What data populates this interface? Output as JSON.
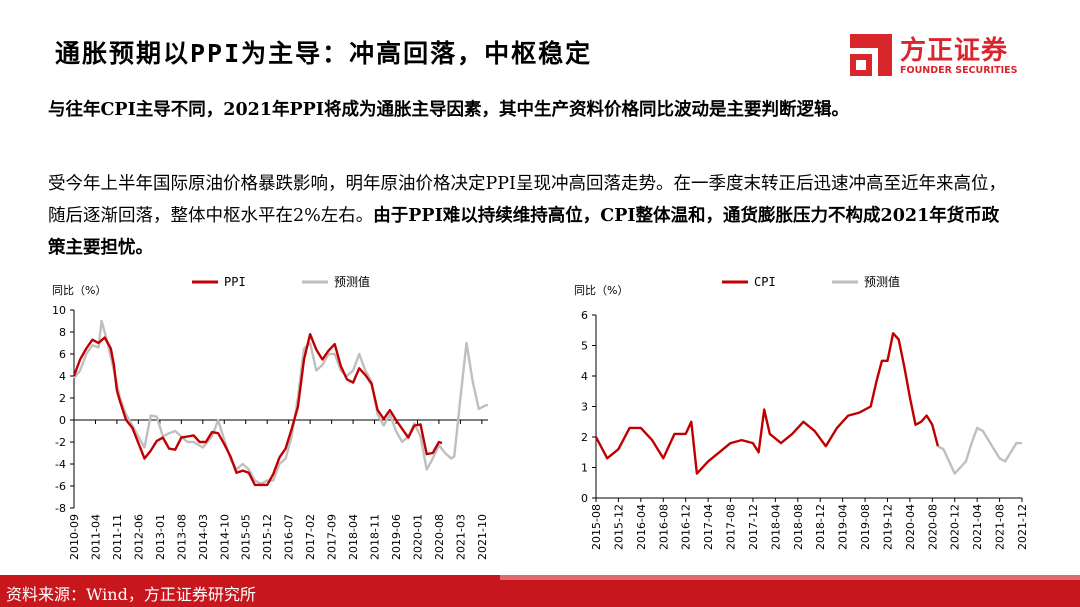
{
  "header": {
    "title": "通胀预期以PPI为主导：冲高回落，中枢稳定",
    "logo_cn": "方正证券",
    "logo_en": "FOUNDER SECURITIES",
    "brand_color": "#d8262c"
  },
  "body": {
    "p1": "与往年CPI主导不同，2021年PPI将成为通胀主导因素，其中生产资料价格同比波动是主要判断逻辑。",
    "p2_normal": "受今年上半年国际原油价格暴跌影响，明年原油价格决定PPI呈现冲高回落走势。在一季度末转正后迅速冲高至近年来高位，随后逐渐回落，整体中枢水平在2%左右。",
    "p2_bold": "由于PPI难以持续维持高位，CPI整体温和，通货膨胀压力不构成2021年货币政策主要担忧。"
  },
  "footer": {
    "source": "资料来源：Wind，方正证券研究所"
  },
  "chart_data": [
    {
      "type": "line",
      "ylabel": "同比（%）",
      "ylim": [
        -8,
        10
      ],
      "yticks": [
        -8,
        -6,
        -4,
        -2,
        0,
        2,
        4,
        6,
        8,
        10
      ],
      "xlim": [
        "2010-09",
        "2021-12"
      ],
      "xticks": [
        "2010-09",
        "2011-04",
        "2011-11",
        "2012-06",
        "2013-01",
        "2013-08",
        "2014-03",
        "2014-10",
        "2015-05",
        "2015-12",
        "2016-07",
        "2017-02",
        "2017-09",
        "2018-04",
        "2018-11",
        "2019-06",
        "2020-01",
        "2020-08",
        "2021-03",
        "2021-10"
      ],
      "grid": false,
      "legend_position": "top",
      "series": [
        {
          "name": "PPI",
          "color": "#c00000",
          "points": [
            [
              "2010-09",
              4.0
            ],
            [
              "2010-11",
              5.5
            ],
            [
              "2011-01",
              6.5
            ],
            [
              "2011-03",
              7.3
            ],
            [
              "2011-05",
              7.0
            ],
            [
              "2011-07",
              7.5
            ],
            [
              "2011-09",
              6.5
            ],
            [
              "2011-10",
              5.0
            ],
            [
              "2011-11",
              2.7
            ],
            [
              "2011-12",
              1.7
            ],
            [
              "2012-02",
              0.0
            ],
            [
              "2012-04",
              -0.7
            ],
            [
              "2012-06",
              -2.1
            ],
            [
              "2012-08",
              -3.5
            ],
            [
              "2012-10",
              -2.8
            ],
            [
              "2012-12",
              -1.9
            ],
            [
              "2013-02",
              -1.6
            ],
            [
              "2013-04",
              -2.6
            ],
            [
              "2013-06",
              -2.7
            ],
            [
              "2013-08",
              -1.6
            ],
            [
              "2013-10",
              -1.5
            ],
            [
              "2013-12",
              -1.4
            ],
            [
              "2014-02",
              -2.0
            ],
            [
              "2014-04",
              -2.0
            ],
            [
              "2014-06",
              -1.1
            ],
            [
              "2014-08",
              -1.2
            ],
            [
              "2014-10",
              -2.2
            ],
            [
              "2014-12",
              -3.3
            ],
            [
              "2015-02",
              -4.8
            ],
            [
              "2015-04",
              -4.6
            ],
            [
              "2015-06",
              -4.8
            ],
            [
              "2015-08",
              -5.9
            ],
            [
              "2015-10",
              -5.9
            ],
            [
              "2015-12",
              -5.9
            ],
            [
              "2016-02",
              -4.9
            ],
            [
              "2016-04",
              -3.4
            ],
            [
              "2016-06",
              -2.6
            ],
            [
              "2016-08",
              -0.8
            ],
            [
              "2016-10",
              1.2
            ],
            [
              "2016-12",
              5.5
            ],
            [
              "2017-02",
              7.8
            ],
            [
              "2017-04",
              6.4
            ],
            [
              "2017-06",
              5.5
            ],
            [
              "2017-08",
              6.3
            ],
            [
              "2017-10",
              6.9
            ],
            [
              "2017-12",
              4.9
            ],
            [
              "2018-02",
              3.7
            ],
            [
              "2018-04",
              3.4
            ],
            [
              "2018-06",
              4.7
            ],
            [
              "2018-08",
              4.1
            ],
            [
              "2018-10",
              3.3
            ],
            [
              "2018-12",
              0.9
            ],
            [
              "2019-02",
              0.1
            ],
            [
              "2019-04",
              0.9
            ],
            [
              "2019-06",
              0.0
            ],
            [
              "2019-08",
              -0.8
            ],
            [
              "2019-10",
              -1.6
            ],
            [
              "2019-12",
              -0.5
            ],
            [
              "2020-02",
              -0.4
            ],
            [
              "2020-04",
              -3.1
            ],
            [
              "2020-06",
              -3.0
            ],
            [
              "2020-08",
              -2.0
            ],
            [
              "2020-09",
              -2.1
            ]
          ]
        },
        {
          "name": "预测值",
          "color": "#bfbfbf",
          "points": [
            [
              "2010-09",
              3.8
            ],
            [
              "2010-11",
              4.5
            ],
            [
              "2011-01",
              6.0
            ],
            [
              "2011-03",
              6.8
            ],
            [
              "2011-05",
              6.6
            ],
            [
              "2011-06",
              9.0
            ],
            [
              "2011-08",
              7.0
            ],
            [
              "2011-10",
              4.5
            ],
            [
              "2011-12",
              2.0
            ],
            [
              "2012-02",
              0.5
            ],
            [
              "2012-04",
              -0.5
            ],
            [
              "2012-06",
              -1.5
            ],
            [
              "2012-08",
              -2.5
            ],
            [
              "2012-10",
              0.4
            ],
            [
              "2012-12",
              0.3
            ],
            [
              "2013-02",
              -1.5
            ],
            [
              "2013-04",
              -1.2
            ],
            [
              "2013-06",
              -1.0
            ],
            [
              "2013-08",
              -1.5
            ],
            [
              "2013-10",
              -2.0
            ],
            [
              "2013-12",
              -2.0
            ],
            [
              "2014-03",
              -2.5
            ],
            [
              "2014-06",
              -1.5
            ],
            [
              "2014-08",
              0.0
            ],
            [
              "2014-10",
              -1.8
            ],
            [
              "2014-12",
              -3.5
            ],
            [
              "2015-02",
              -4.5
            ],
            [
              "2015-04",
              -4.0
            ],
            [
              "2015-06",
              -4.5
            ],
            [
              "2015-08",
              -5.5
            ],
            [
              "2015-10",
              -5.8
            ],
            [
              "2015-12",
              -5.5
            ],
            [
              "2016-02",
              -5.5
            ],
            [
              "2016-04",
              -4.0
            ],
            [
              "2016-06",
              -3.5
            ],
            [
              "2016-08",
              -1.5
            ],
            [
              "2016-10",
              2.0
            ],
            [
              "2016-12",
              6.5
            ],
            [
              "2017-02",
              7.0
            ],
            [
              "2017-04",
              4.5
            ],
            [
              "2017-06",
              5.0
            ],
            [
              "2017-08",
              6.0
            ],
            [
              "2017-10",
              6.0
            ],
            [
              "2017-12",
              4.5
            ],
            [
              "2018-02",
              4.0
            ],
            [
              "2018-04",
              4.5
            ],
            [
              "2018-06",
              6.0
            ],
            [
              "2018-08",
              4.5
            ],
            [
              "2018-10",
              3.5
            ],
            [
              "2018-12",
              0.5
            ],
            [
              "2019-02",
              -0.5
            ],
            [
              "2019-04",
              0.5
            ],
            [
              "2019-06",
              -1.0
            ],
            [
              "2019-08",
              -2.0
            ],
            [
              "2019-10",
              -1.5
            ],
            [
              "2019-12",
              -0.3
            ],
            [
              "2020-02",
              -1.5
            ],
            [
              "2020-04",
              -4.5
            ],
            [
              "2020-06",
              -3.5
            ],
            [
              "2020-08",
              -2.3
            ],
            [
              "2020-10",
              -3.0
            ],
            [
              "2020-12",
              -3.5
            ],
            [
              "2021-01",
              -3.3
            ],
            [
              "2021-03",
              2.0
            ],
            [
              "2021-05",
              7.0
            ],
            [
              "2021-07",
              3.5
            ],
            [
              "2021-09",
              1.0
            ],
            [
              "2021-11",
              1.3
            ],
            [
              "2021-12",
              1.4
            ]
          ]
        }
      ]
    },
    {
      "type": "line",
      "ylabel": "同比（%）",
      "ylim": [
        0,
        6
      ],
      "yticks": [
        0,
        1,
        2,
        3,
        4,
        5,
        6
      ],
      "xlim": [
        "2015-08",
        "2021-12"
      ],
      "xticks": [
        "2015-08",
        "2015-12",
        "2016-04",
        "2016-08",
        "2016-12",
        "2017-04",
        "2017-08",
        "2017-12",
        "2018-04",
        "2018-08",
        "2018-12",
        "2019-04",
        "2019-08",
        "2019-12",
        "2020-04",
        "2020-08",
        "2020-12",
        "2021-04",
        "2021-08",
        "2021-12"
      ],
      "grid": false,
      "legend_position": "top",
      "series": [
        {
          "name": "CPI",
          "color": "#c00000",
          "points": [
            [
              "2015-08",
              2.0
            ],
            [
              "2015-10",
              1.3
            ],
            [
              "2015-12",
              1.6
            ],
            [
              "2016-02",
              2.3
            ],
            [
              "2016-04",
              2.3
            ],
            [
              "2016-06",
              1.9
            ],
            [
              "2016-08",
              1.3
            ],
            [
              "2016-10",
              2.1
            ],
            [
              "2016-12",
              2.1
            ],
            [
              "2017-01",
              2.5
            ],
            [
              "2017-02",
              0.8
            ],
            [
              "2017-04",
              1.2
            ],
            [
              "2017-06",
              1.5
            ],
            [
              "2017-08",
              1.8
            ],
            [
              "2017-10",
              1.9
            ],
            [
              "2017-12",
              1.8
            ],
            [
              "2018-01",
              1.5
            ],
            [
              "2018-02",
              2.9
            ],
            [
              "2018-03",
              2.1
            ],
            [
              "2018-05",
              1.8
            ],
            [
              "2018-07",
              2.1
            ],
            [
              "2018-09",
              2.5
            ],
            [
              "2018-11",
              2.2
            ],
            [
              "2019-01",
              1.7
            ],
            [
              "2019-03",
              2.3
            ],
            [
              "2019-05",
              2.7
            ],
            [
              "2019-07",
              2.8
            ],
            [
              "2019-09",
              3.0
            ],
            [
              "2019-10",
              3.8
            ],
            [
              "2019-11",
              4.5
            ],
            [
              "2019-12",
              4.5
            ],
            [
              "2020-01",
              5.4
            ],
            [
              "2020-02",
              5.2
            ],
            [
              "2020-03",
              4.3
            ],
            [
              "2020-04",
              3.3
            ],
            [
              "2020-05",
              2.4
            ],
            [
              "2020-06",
              2.5
            ],
            [
              "2020-07",
              2.7
            ],
            [
              "2020-08",
              2.4
            ],
            [
              "2020-09",
              1.7
            ]
          ]
        },
        {
          "name": "预测值",
          "color": "#bfbfbf",
          "points": [
            [
              "2020-09",
              1.7
            ],
            [
              "2020-10",
              1.6
            ],
            [
              "2020-11",
              1.2
            ],
            [
              "2020-12",
              0.8
            ],
            [
              "2021-01",
              1.0
            ],
            [
              "2021-02",
              1.2
            ],
            [
              "2021-03",
              1.8
            ],
            [
              "2021-04",
              2.3
            ],
            [
              "2021-05",
              2.2
            ],
            [
              "2021-06",
              1.9
            ],
            [
              "2021-07",
              1.6
            ],
            [
              "2021-08",
              1.3
            ],
            [
              "2021-09",
              1.2
            ],
            [
              "2021-10",
              1.5
            ],
            [
              "2021-11",
              1.8
            ],
            [
              "2021-12",
              1.8
            ]
          ]
        }
      ]
    }
  ]
}
